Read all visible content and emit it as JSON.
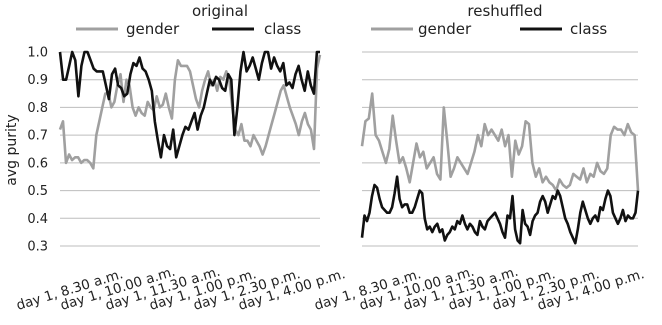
{
  "chart_data": [
    {
      "type": "line",
      "title": "original",
      "ylabel": "avg purity",
      "xlabel": "",
      "ylim": [
        0.3,
        1.0
      ],
      "yticks": [
        0.3,
        0.4,
        0.5,
        0.6,
        0.7,
        0.8,
        0.9,
        1.0
      ],
      "xtick_labels": [
        "day 1, 8.30 a.m.",
        "day 1, 10.00 a.m.",
        "day 1, 11.30 a.m.",
        "day 1, 1.00 p.m.",
        "day 1, 2.30 p.m.",
        "day 1, 4.00 p.m."
      ],
      "grid": true,
      "legend": "top",
      "series": [
        {
          "name": "gender",
          "color": "#a0a0a0",
          "values": [
            0.72,
            0.75,
            0.6,
            0.63,
            0.61,
            0.62,
            0.62,
            0.6,
            0.61,
            0.61,
            0.6,
            0.58,
            0.7,
            0.75,
            0.8,
            0.85,
            0.85,
            0.8,
            0.82,
            0.88,
            0.92,
            0.82,
            0.9,
            0.88,
            0.8,
            0.77,
            0.8,
            0.78,
            0.77,
            0.82,
            0.8,
            0.79,
            0.84,
            0.8,
            0.81,
            0.85,
            0.8,
            0.76,
            0.9,
            0.97,
            0.95,
            0.95,
            0.95,
            0.93,
            0.88,
            0.83,
            0.8,
            0.86,
            0.9,
            0.93,
            0.88,
            0.9,
            0.86,
            0.91,
            0.9,
            0.93,
            0.9,
            0.8,
            0.72,
            0.7,
            0.74,
            0.68,
            0.68,
            0.66,
            0.7,
            0.68,
            0.66,
            0.63,
            0.66,
            0.7,
            0.74,
            0.78,
            0.82,
            0.86,
            0.88,
            0.84,
            0.8,
            0.77,
            0.74,
            0.7,
            0.75,
            0.78,
            0.74,
            0.72,
            0.65,
            0.94,
            0.99
          ]
        },
        {
          "name": "class",
          "color": "#111111",
          "values": [
            1.0,
            0.9,
            0.9,
            0.95,
            1.0,
            0.97,
            0.84,
            0.95,
            1.0,
            1.0,
            0.97,
            0.94,
            0.93,
            0.93,
            0.93,
            0.88,
            0.83,
            0.92,
            0.94,
            0.88,
            0.87,
            0.84,
            0.85,
            0.92,
            0.96,
            0.95,
            0.98,
            0.94,
            0.93,
            0.9,
            0.86,
            0.75,
            0.68,
            0.62,
            0.7,
            0.66,
            0.65,
            0.72,
            0.62,
            0.66,
            0.7,
            0.73,
            0.72,
            0.75,
            0.78,
            0.72,
            0.77,
            0.8,
            0.85,
            0.9,
            0.88,
            0.91,
            0.9,
            0.87,
            0.86,
            0.92,
            0.9,
            0.7,
            0.8,
            0.93,
            1.0,
            0.93,
            0.95,
            0.98,
            0.94,
            0.9,
            0.96,
            1.0,
            1.0,
            0.94,
            0.98,
            0.95,
            0.93,
            0.96,
            0.88,
            0.89,
            0.87,
            0.92,
            0.95,
            0.9,
            0.86,
            0.93,
            0.88,
            0.85,
            1.0,
            1.0
          ]
        }
      ]
    },
    {
      "type": "line",
      "title": "reshuffled",
      "ylabel": "",
      "xlabel": "",
      "ylim": [
        0.3,
        1.0
      ],
      "yticks": [
        0.3,
        0.4,
        0.5,
        0.6,
        0.7,
        0.8,
        0.9,
        1.0
      ],
      "xtick_labels": [
        "day 1, 8.30 a.m.",
        "day 1, 10.00 a.m.",
        "day 1, 11.30 a.m.",
        "day 1, 1.00 p.m.",
        "day 1, 2.30 p.m.",
        "day 1, 4.00 p.m."
      ],
      "grid": true,
      "legend": "top",
      "series": [
        {
          "name": "gender",
          "color": "#a0a0a0",
          "values": [
            0.66,
            0.75,
            0.76,
            0.85,
            0.7,
            0.68,
            0.64,
            0.6,
            0.65,
            0.77,
            0.68,
            0.6,
            0.62,
            0.58,
            0.53,
            0.6,
            0.67,
            0.62,
            0.64,
            0.58,
            0.6,
            0.62,
            0.56,
            0.54,
            0.8,
            0.68,
            0.55,
            0.58,
            0.62,
            0.6,
            0.58,
            0.56,
            0.6,
            0.64,
            0.7,
            0.66,
            0.74,
            0.7,
            0.72,
            0.7,
            0.68,
            0.72,
            0.66,
            0.7,
            0.55,
            0.68,
            0.63,
            0.66,
            0.75,
            0.74,
            0.6,
            0.55,
            0.58,
            0.53,
            0.55,
            0.53,
            0.52,
            0.5,
            0.54,
            0.52,
            0.51,
            0.52,
            0.56,
            0.55,
            0.54,
            0.58,
            0.53,
            0.56,
            0.55,
            0.6,
            0.57,
            0.56,
            0.58,
            0.7,
            0.73,
            0.72,
            0.72,
            0.7,
            0.74,
            0.71,
            0.7,
            0.5
          ]
        },
        {
          "name": "class",
          "color": "#111111",
          "values": [
            0.33,
            0.41,
            0.39,
            0.42,
            0.48,
            0.52,
            0.51,
            0.47,
            0.44,
            0.43,
            0.42,
            0.42,
            0.44,
            0.49,
            0.55,
            0.47,
            0.44,
            0.45,
            0.45,
            0.42,
            0.42,
            0.44,
            0.47,
            0.5,
            0.49,
            0.4,
            0.36,
            0.37,
            0.35,
            0.37,
            0.38,
            0.35,
            0.36,
            0.32,
            0.34,
            0.35,
            0.37,
            0.36,
            0.39,
            0.38,
            0.41,
            0.38,
            0.36,
            0.38,
            0.37,
            0.35,
            0.34,
            0.39,
            0.37,
            0.36,
            0.39,
            0.4,
            0.41,
            0.42,
            0.4,
            0.38,
            0.35,
            0.33,
            0.41,
            0.4,
            0.48,
            0.36,
            0.32,
            0.31,
            0.43,
            0.38,
            0.37,
            0.34,
            0.39,
            0.41,
            0.42,
            0.46,
            0.48,
            0.46,
            0.42,
            0.45,
            0.48,
            0.47,
            0.5,
            0.48,
            0.44,
            0.4,
            0.38,
            0.35,
            0.33,
            0.31,
            0.36,
            0.42,
            0.46,
            0.43,
            0.4,
            0.38,
            0.4,
            0.41,
            0.39,
            0.44,
            0.43,
            0.47,
            0.5,
            0.48,
            0.42,
            0.4,
            0.38,
            0.4,
            0.43,
            0.39,
            0.41,
            0.4,
            0.4,
            0.42,
            0.5
          ]
        }
      ]
    }
  ]
}
